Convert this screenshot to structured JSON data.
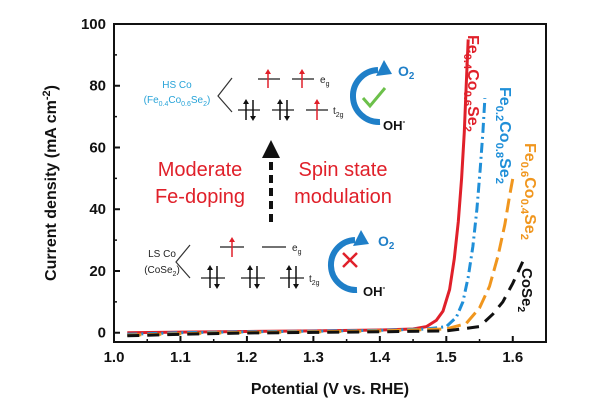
{
  "chart_data": {
    "type": "line",
    "xlabel": "Potential (V vs. RHE)",
    "ylabel": "Current density (mA cm",
    "ylabel_sup": "-2",
    "ylabel_close": ")",
    "xlim": [
      1.0,
      1.65
    ],
    "ylim": [
      -3,
      100
    ],
    "x_ticks": [
      "1.0",
      "1.1",
      "1.2",
      "1.3",
      "1.4",
      "1.5",
      "1.6"
    ],
    "y_ticks": [
      "0",
      "20",
      "40",
      "60",
      "80",
      "100"
    ],
    "grid": false,
    "series": [
      {
        "name": "Fe0.4Co0.6Se2",
        "label_parts": [
          "Fe",
          "0.4",
          "Co",
          "0.6",
          "Se",
          "2"
        ],
        "color": "#e0202a",
        "style": "solid",
        "points": [
          [
            1.02,
            0
          ],
          [
            1.1,
            0.2
          ],
          [
            1.2,
            0.4
          ],
          [
            1.3,
            0.6
          ],
          [
            1.4,
            0.9
          ],
          [
            1.45,
            1.2
          ],
          [
            1.47,
            2
          ],
          [
            1.485,
            4
          ],
          [
            1.495,
            7
          ],
          [
            1.505,
            14
          ],
          [
            1.512,
            24
          ],
          [
            1.518,
            36
          ],
          [
            1.523,
            50
          ],
          [
            1.527,
            65
          ],
          [
            1.53,
            80
          ],
          [
            1.533,
            95
          ]
        ]
      },
      {
        "name": "Fe0.2Co0.8Se2",
        "label_parts": [
          "Fe",
          "0.2",
          "Co",
          "0.8",
          "Se",
          "2"
        ],
        "color": "#1f8fd8",
        "style": "dashdot",
        "points": [
          [
            1.02,
            -0.5
          ],
          [
            1.1,
            0
          ],
          [
            1.2,
            0.3
          ],
          [
            1.3,
            0.5
          ],
          [
            1.4,
            0.8
          ],
          [
            1.47,
            1.2
          ],
          [
            1.5,
            2
          ],
          [
            1.515,
            5
          ],
          [
            1.525,
            10
          ],
          [
            1.533,
            18
          ],
          [
            1.54,
            28
          ],
          [
            1.546,
            40
          ],
          [
            1.551,
            53
          ],
          [
            1.555,
            65
          ],
          [
            1.558,
            76
          ]
        ]
      },
      {
        "name": "Fe0.6Co0.4Se2",
        "label_parts": [
          "Fe",
          "0.6",
          "Co",
          "0.4",
          "Se",
          "2"
        ],
        "color": "#f0961e",
        "style": "longdash",
        "points": [
          [
            1.02,
            -0.8
          ],
          [
            1.1,
            -0.3
          ],
          [
            1.2,
            0.1
          ],
          [
            1.3,
            0.3
          ],
          [
            1.4,
            0.6
          ],
          [
            1.5,
            1.2
          ],
          [
            1.53,
            3
          ],
          [
            1.55,
            8
          ],
          [
            1.565,
            15
          ],
          [
            1.578,
            25
          ],
          [
            1.588,
            35
          ],
          [
            1.595,
            44
          ],
          [
            1.6,
            50
          ]
        ]
      },
      {
        "name": "CoSe2",
        "label_parts": [
          "CoSe",
          "2"
        ],
        "color": "#111111",
        "style": "dashed",
        "points": [
          [
            1.02,
            -1
          ],
          [
            1.1,
            -0.5
          ],
          [
            1.2,
            -0.1
          ],
          [
            1.3,
            0.1
          ],
          [
            1.4,
            0.3
          ],
          [
            1.5,
            0.6
          ],
          [
            1.55,
            2
          ],
          [
            1.57,
            6
          ],
          [
            1.585,
            10
          ],
          [
            1.6,
            16
          ],
          [
            1.615,
            23
          ]
        ]
      }
    ]
  },
  "schematic": {
    "hs_label_line1": "HS Co",
    "hs_label_line2_parts": [
      "(Fe",
      "0.4",
      "Co",
      "0.6",
      "Se",
      "2",
      ")"
    ],
    "ls_label_line1": "LS Co",
    "ls_label_line2_parts": [
      "(CoSe",
      "2",
      ")"
    ],
    "eg_parts": [
      "e",
      "g"
    ],
    "t2g_parts": [
      "t",
      "2g"
    ],
    "o2_parts": [
      "O",
      "2"
    ],
    "oh_parts": [
      "OH",
      "-"
    ],
    "left_text": [
      "Moderate",
      "Fe-doping"
    ],
    "right_text": [
      "Spin state",
      "modulation"
    ],
    "colors": {
      "red": "#e0202a",
      "cyan": "#27aee0",
      "blue_arrow": "#1f7fc8",
      "green": "#6cc04a",
      "hs_label": "#27a3d8"
    }
  }
}
